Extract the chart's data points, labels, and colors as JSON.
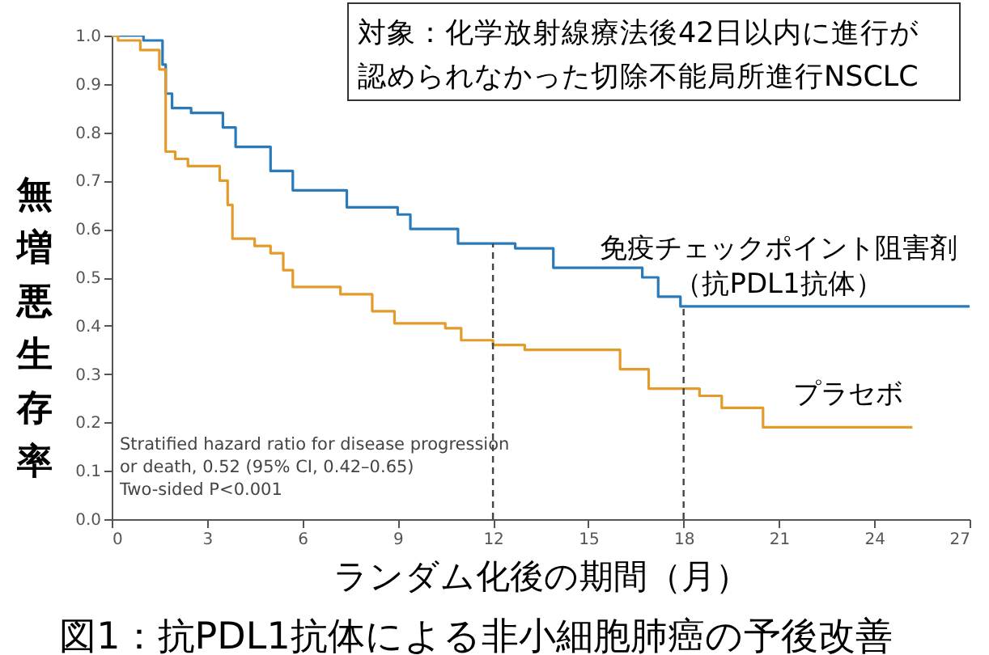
{
  "chart_data": {
    "type": "step",
    "title": "図1：抗PDL1抗体による非小細胞肺癌の予後改善",
    "xlabel": "ランダム化後の期間（月）",
    "ylabel": "無増悪生存率",
    "annotations": [
      "対象：化学放射線療法後42日以内に進行が認められなかった切除不能局所進行NSCLC",
      "Stratified hazard ratio for disease progression\n    or death, 0.52 (95% CI, 0.42–0.65)\nTwo-sided P<0.001"
    ],
    "xlim": [
      0,
      27
    ],
    "xticks": [
      0,
      3,
      6,
      9,
      12,
      15,
      18,
      21,
      24,
      27
    ],
    "ylim": [
      0,
      1
    ],
    "yticks": [
      {
        "value": 0,
        "label": "0.0"
      },
      {
        "value": 0.1,
        "label": "0.1"
      },
      {
        "value": 0.2,
        "label": "0.2"
      },
      {
        "value": 0.3,
        "label": "0.3"
      },
      {
        "value": 0.4,
        "label": "0.4"
      },
      {
        "value": 0.5,
        "label": "0.5"
      },
      {
        "value": 0.6,
        "label": "0.6"
      },
      {
        "value": 0.7,
        "label": "0.7"
      },
      {
        "value": 0.8,
        "label": "0.8"
      },
      {
        "value": 0.9,
        "label": "0.9"
      },
      {
        "value": 1,
        "label": "1.0"
      }
    ],
    "grid": false,
    "series": [
      {
        "name": "免疫チェックポイント阻害剤（抗PDL1抗体）",
        "color": "#2a7ab9",
        "x": [
          0,
          1.0,
          1.6,
          1.7,
          1.9,
          2.5,
          3.5,
          3.9,
          5.0,
          5.7,
          7.4,
          9.0,
          9.4,
          10.9,
          12.7,
          13.9,
          16.7,
          17.2,
          17.9,
          27
        ],
        "values": [
          1.0,
          0.99,
          0.94,
          0.88,
          0.85,
          0.84,
          0.81,
          0.77,
          0.72,
          0.68,
          0.645,
          0.63,
          0.6,
          0.57,
          0.56,
          0.52,
          0.5,
          0.46,
          0.44,
          0.44
        ]
      },
      {
        "name": "プラセボ",
        "color": "#e39b2b",
        "x": [
          0,
          0.2,
          0.9,
          1.5,
          1.7,
          2.0,
          2.4,
          3.4,
          3.65,
          3.8,
          4.5,
          5.0,
          5.4,
          5.7,
          7.2,
          8.2,
          8.9,
          10.5,
          11.0,
          12.0,
          13.0,
          16.0,
          16.9,
          18.5,
          19.2,
          20.5,
          25.2
        ],
        "values": [
          1.0,
          0.99,
          0.97,
          0.93,
          0.76,
          0.745,
          0.73,
          0.7,
          0.65,
          0.58,
          0.565,
          0.55,
          0.515,
          0.48,
          0.465,
          0.43,
          0.405,
          0.395,
          0.37,
          0.36,
          0.35,
          0.31,
          0.27,
          0.255,
          0.23,
          0.19,
          0.19
        ]
      }
    ],
    "ref_lines": [
      {
        "axis": "x",
        "value": 12,
        "line_style": "dashed",
        "color": "#444444"
      },
      {
        "axis": "x",
        "value": 18,
        "line_style": "dashed",
        "color": "#444444"
      }
    ]
  }
}
